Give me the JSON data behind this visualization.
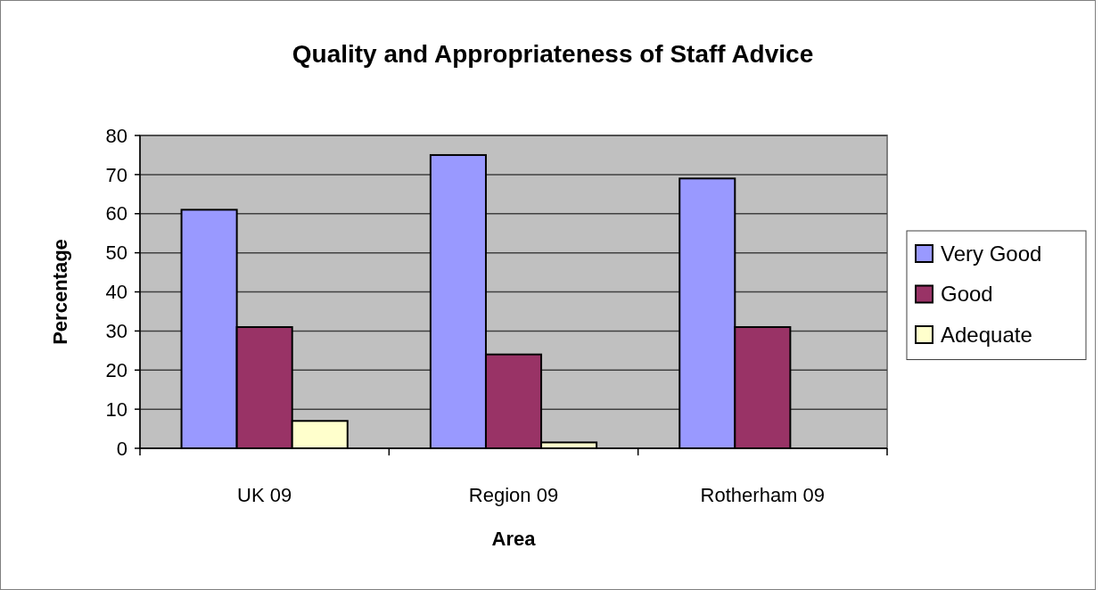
{
  "chart_data": {
    "type": "bar",
    "title": "Quality and Appropriateness of Staff Advice",
    "xlabel": "Area",
    "ylabel": "Percentage",
    "categories": [
      "UK 09",
      "Region 09",
      "Rotherham 09"
    ],
    "series": [
      {
        "name": "Very Good",
        "color": "#9999ff",
        "values": [
          61,
          75,
          69
        ]
      },
      {
        "name": "Good",
        "color": "#993366",
        "values": [
          31,
          24,
          31
        ]
      },
      {
        "name": "Adequate",
        "color": "#ffffcc",
        "values": [
          7,
          1.5,
          null
        ]
      }
    ],
    "ylim": [
      0,
      80
    ],
    "yticks": [
      0,
      10,
      20,
      30,
      40,
      50,
      60,
      70,
      80
    ],
    "grid": "y",
    "legend": "right"
  }
}
